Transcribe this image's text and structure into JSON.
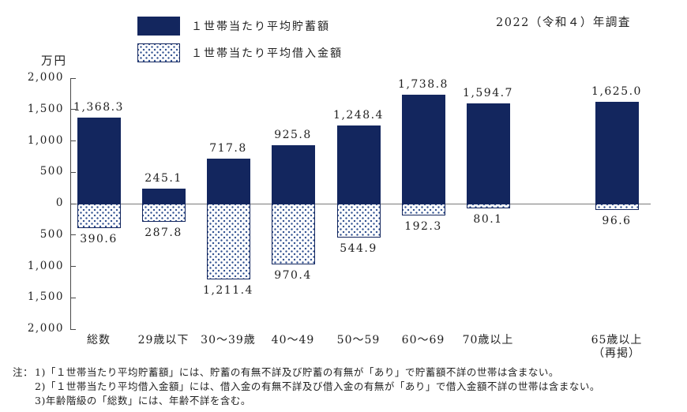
{
  "title": "2022（令和４）年調査",
  "unit_label": "万円",
  "legend": {
    "savings_label": "１世帯当たり平均貯蓄額",
    "borrowings_label": "１世帯当たり平均借入金額"
  },
  "colors": {
    "navy": "#13265e",
    "dot": "#2f4f8f",
    "axis": "#4a4a4a",
    "zero_line": "#7a7a7a"
  },
  "chart_data": {
    "type": "bar",
    "title": "2022（令和４）年調査",
    "ylabel": "万円",
    "ylim": [
      -2000,
      2000
    ],
    "grid": false,
    "legend_position": "top-left",
    "categories": [
      "総数",
      "29歳以下",
      "30〜39歳",
      "40〜49",
      "50〜59",
      "60〜69",
      "70歳以上",
      "65歳以上\n（再掲）"
    ],
    "series": [
      {
        "name": "１世帯当たり平均貯蓄額",
        "direction": "up",
        "values": [
          1368.3,
          245.1,
          717.8,
          925.8,
          1248.4,
          1738.8,
          1594.7,
          1625.0
        ]
      },
      {
        "name": "１世帯当たり平均借入金額",
        "direction": "down",
        "values": [
          390.6,
          287.8,
          1211.4,
          970.4,
          544.9,
          192.3,
          80.1,
          96.6
        ]
      }
    ],
    "value_labels": {
      "savings": [
        "1,368.3",
        "245.1",
        "717.8",
        "925.8",
        "1,248.4",
        "1,738.8",
        "1,594.7",
        "1,625.0"
      ],
      "borrowings": [
        "390.6",
        "287.8",
        "1,211.4",
        "970.4",
        "544.9",
        "192.3",
        "80.1",
        "96.6"
      ]
    },
    "ytick_labels": [
      "2,000",
      "1,500",
      "1,000",
      "500",
      "0",
      "500",
      "1,000",
      "1,500",
      "2,000"
    ]
  },
  "notes": {
    "prefix": "注：",
    "items": [
      "1)「１世帯当たり平均貯蓄額」には、貯蓄の有無不詳及び貯蓄の有無が「あり」で貯蓄額不詳の世帯は含まない。",
      "2)「１世帯当たり平均借入金額」には、借入金の有無不詳及び借入金の有無が「あり」で借入金額不詳の世帯は含まない。",
      "3)年齢階級の「総数」には、年齢不詳を含む。"
    ]
  }
}
